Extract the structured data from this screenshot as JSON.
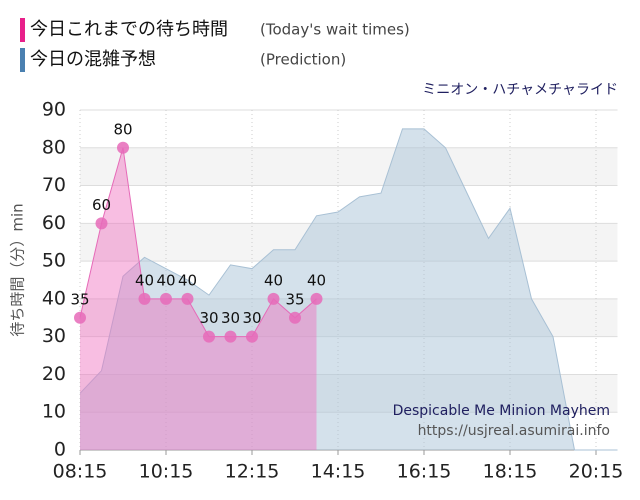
{
  "chart_data": {
    "type": "area",
    "title": "ミニオン・ハチャメチャライド",
    "watermark": [
      "Despicable Me Minion Mayhem",
      "https://usjreal.asumirai.info"
    ],
    "y_label": "待ち時間（分）min",
    "xlim": [
      "08:15",
      "20:45"
    ],
    "xticks": [
      "08:15",
      "10:15",
      "12:15",
      "14:15",
      "16:15",
      "18:15",
      "20:15"
    ],
    "ylim": [
      0,
      90
    ],
    "yticks": [
      0,
      10,
      20,
      30,
      40,
      50,
      60,
      70,
      80,
      90
    ],
    "grid": true,
    "series": [
      {
        "name": "今日これまでの待ち時間",
        "name_en": "(Today's wait times)",
        "color": "#e8208a",
        "fill": "rgba(240,110,190,0.45)",
        "point_color": "#e66ab8",
        "x": [
          "08:15",
          "08:45",
          "09:15",
          "09:45",
          "10:15",
          "10:45",
          "11:15",
          "11:45",
          "12:15",
          "12:45",
          "13:15",
          "13:45"
        ],
        "values": [
          35,
          60,
          80,
          40,
          40,
          40,
          30,
          30,
          30,
          40,
          35,
          40
        ]
      },
      {
        "name": "今日の混雑予想",
        "name_en": "(Prediction)",
        "color": "#4a80b0",
        "fill": "rgba(170,196,216,0.5)",
        "point_color": "#a8c0d4",
        "x": [
          "08:15",
          "08:45",
          "09:15",
          "09:45",
          "10:15",
          "10:45",
          "11:15",
          "11:45",
          "12:15",
          "12:45",
          "13:15",
          "13:45",
          "14:15",
          "14:45",
          "15:15",
          "15:45",
          "16:15",
          "16:45",
          "17:15",
          "17:45",
          "18:15",
          "18:45",
          "19:15",
          "19:45",
          "20:15",
          "20:45"
        ],
        "values": [
          15,
          21,
          46,
          51,
          48,
          45,
          41,
          49,
          48,
          53,
          53,
          62,
          63,
          67,
          68,
          85,
          85,
          80,
          68,
          56,
          64,
          40,
          30,
          0,
          0,
          0
        ]
      }
    ]
  }
}
